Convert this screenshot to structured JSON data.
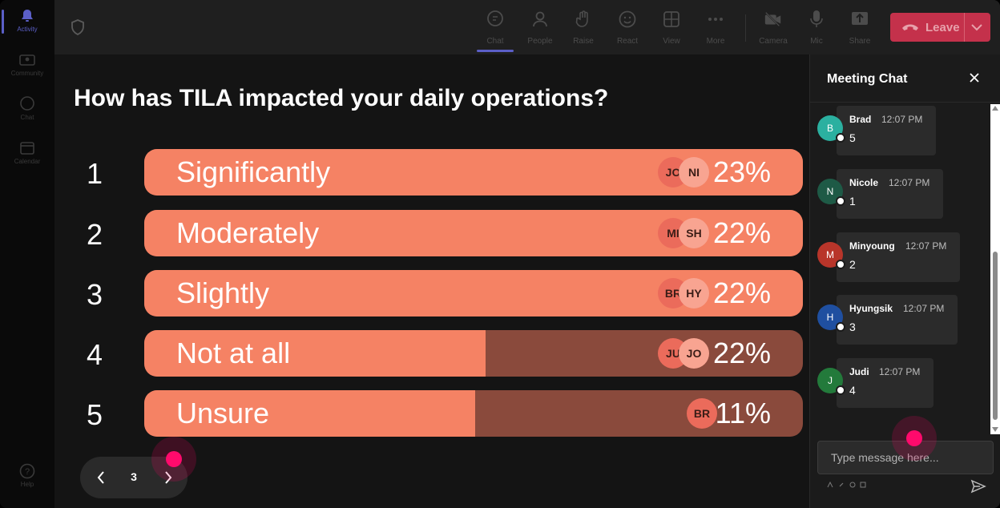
{
  "rail": {
    "items": [
      {
        "label": "Activity",
        "icon": "bell-icon",
        "active": true
      },
      {
        "label": "Community",
        "icon": "community-icon"
      },
      {
        "label": "Chat",
        "icon": "chat-icon"
      },
      {
        "label": "Calendar",
        "icon": "calendar-icon"
      },
      {
        "label": "Help",
        "icon": "help-icon"
      }
    ]
  },
  "toolbar": {
    "items": [
      {
        "label": "Chat",
        "icon": "chat-bubble-icon",
        "active": true
      },
      {
        "label": "People",
        "icon": "people-icon"
      },
      {
        "label": "Raise",
        "icon": "raise-hand-icon"
      },
      {
        "label": "React",
        "icon": "smile-icon"
      },
      {
        "label": "View",
        "icon": "grid-view-icon"
      },
      {
        "label": "More",
        "icon": "more-icon"
      },
      {
        "label": "Camera",
        "icon": "camera-off-icon"
      },
      {
        "label": "Mic",
        "icon": "mic-icon"
      },
      {
        "label": "Share",
        "icon": "share-icon"
      }
    ],
    "leave_label": "Leave",
    "leave_color": "#c4314b"
  },
  "poll": {
    "question": "How has TILA impacted your daily operations?",
    "options": [
      {
        "num": "1",
        "label": "Significantly",
        "pct": "23%",
        "fill": 1.0,
        "avatars": [
          "JO",
          "NI"
        ]
      },
      {
        "num": "2",
        "label": "Moderately",
        "pct": "22%",
        "fill": 1.0,
        "avatars": [
          "MI",
          "SH"
        ]
      },
      {
        "num": "3",
        "label": "Slightly",
        "pct": "22%",
        "fill": 1.0,
        "avatars": [
          "BR",
          "HY"
        ]
      },
      {
        "num": "4",
        "label": "Not at all",
        "pct": "22%",
        "fill": 0.518,
        "avatars": [
          "JU",
          "JO"
        ]
      },
      {
        "num": "5",
        "label": "Unsure",
        "pct": "11%",
        "fill": 0.502,
        "avatars": [
          "BR"
        ]
      }
    ],
    "bar_color": "#f58264",
    "track_color": "#8a4a3c",
    "page": "3"
  },
  "chat": {
    "title": "Meeting Chat",
    "messages": [
      {
        "initial": "B",
        "name": "Brad",
        "time": "12:07 PM",
        "text": "5",
        "color": "#2bb0a0"
      },
      {
        "initial": "N",
        "name": "Nicole",
        "time": "12:07 PM",
        "text": "1",
        "color": "#1e5a46"
      },
      {
        "initial": "M",
        "name": "Minyoung",
        "time": "12:07 PM",
        "text": "2",
        "color": "#b8352a"
      },
      {
        "initial": "H",
        "name": "Hyungsik",
        "time": "12:07 PM",
        "text": "3",
        "color": "#1f4fa0"
      },
      {
        "initial": "J",
        "name": "Judi",
        "time": "12:07 PM",
        "text": "4",
        "color": "#237a3b"
      }
    ],
    "compose_placeholder": "Type message here..."
  }
}
